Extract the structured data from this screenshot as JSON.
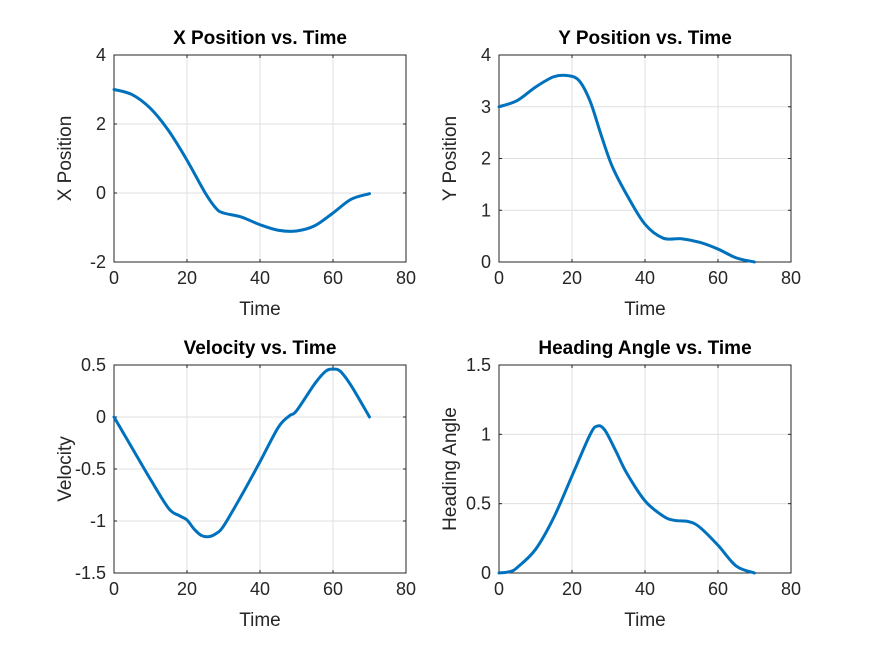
{
  "chart_data": [
    {
      "type": "line",
      "title": "X Position vs. Time",
      "xlabel": "Time",
      "ylabel": "X Position",
      "xlim": [
        0,
        80
      ],
      "ylim": [
        -2,
        4
      ],
      "xticks": [
        0,
        20,
        40,
        60,
        80
      ],
      "yticks": [
        -2,
        0,
        2,
        4
      ],
      "grid": true,
      "series": [
        {
          "color": "#0072BD",
          "x": [
            0,
            5,
            10,
            15,
            20,
            25,
            28,
            30,
            35,
            40,
            45,
            50,
            55,
            60,
            65,
            70
          ],
          "y": [
            3.0,
            2.85,
            2.45,
            1.8,
            0.95,
            0.0,
            -0.45,
            -0.58,
            -0.7,
            -0.92,
            -1.08,
            -1.1,
            -0.95,
            -0.58,
            -0.18,
            -0.02
          ]
        }
      ]
    },
    {
      "type": "line",
      "title": "Y Position vs. Time",
      "xlabel": "Time",
      "ylabel": "Y Position",
      "xlim": [
        0,
        80
      ],
      "ylim": [
        0,
        4
      ],
      "xticks": [
        0,
        20,
        40,
        60,
        80
      ],
      "yticks": [
        0,
        1,
        2,
        3,
        4
      ],
      "grid": true,
      "series": [
        {
          "color": "#0072BD",
          "x": [
            0,
            5,
            10,
            15,
            19,
            22,
            25,
            28,
            31,
            35,
            40,
            45,
            50,
            55,
            60,
            65,
            70
          ],
          "y": [
            3.0,
            3.12,
            3.38,
            3.58,
            3.6,
            3.5,
            3.1,
            2.45,
            1.85,
            1.3,
            0.73,
            0.46,
            0.45,
            0.38,
            0.25,
            0.08,
            0.0
          ]
        }
      ]
    },
    {
      "type": "line",
      "title": "Velocity vs. Time",
      "xlabel": "Time",
      "ylabel": "Velocity",
      "xlim": [
        0,
        80
      ],
      "ylim": [
        -1.5,
        0.5
      ],
      "xticks": [
        0,
        20,
        40,
        60,
        80
      ],
      "yticks": [
        -1.5,
        -1,
        -0.5,
        0,
        0.5
      ],
      "grid": true,
      "series": [
        {
          "color": "#0072BD",
          "x": [
            0,
            5,
            10,
            15,
            18,
            20,
            22,
            24,
            26,
            28,
            30,
            35,
            40,
            45,
            48,
            50,
            55,
            58,
            60,
            62,
            65,
            70
          ],
          "y": [
            0.0,
            -0.3,
            -0.6,
            -0.88,
            -0.95,
            -0.99,
            -1.08,
            -1.14,
            -1.15,
            -1.12,
            -1.05,
            -0.75,
            -0.43,
            -0.1,
            0.01,
            0.06,
            0.32,
            0.44,
            0.46,
            0.44,
            0.3,
            0.0
          ]
        }
      ]
    },
    {
      "type": "line",
      "title": "Heading Angle vs. Time",
      "xlabel": "Time",
      "ylabel": "Heading Angle",
      "xlim": [
        0,
        80
      ],
      "ylim": [
        0,
        1.5
      ],
      "xticks": [
        0,
        20,
        40,
        60,
        80
      ],
      "yticks": [
        0,
        0.5,
        1,
        1.5
      ],
      "grid": true,
      "series": [
        {
          "color": "#0072BD",
          "x": [
            0,
            3,
            5,
            10,
            15,
            20,
            25,
            27,
            29,
            32,
            35,
            40,
            45,
            48,
            52,
            55,
            60,
            65,
            70
          ],
          "y": [
            0.0,
            0.01,
            0.04,
            0.17,
            0.4,
            0.7,
            1.0,
            1.06,
            1.03,
            0.88,
            0.72,
            0.52,
            0.41,
            0.38,
            0.37,
            0.33,
            0.2,
            0.05,
            0.0
          ]
        }
      ]
    }
  ]
}
